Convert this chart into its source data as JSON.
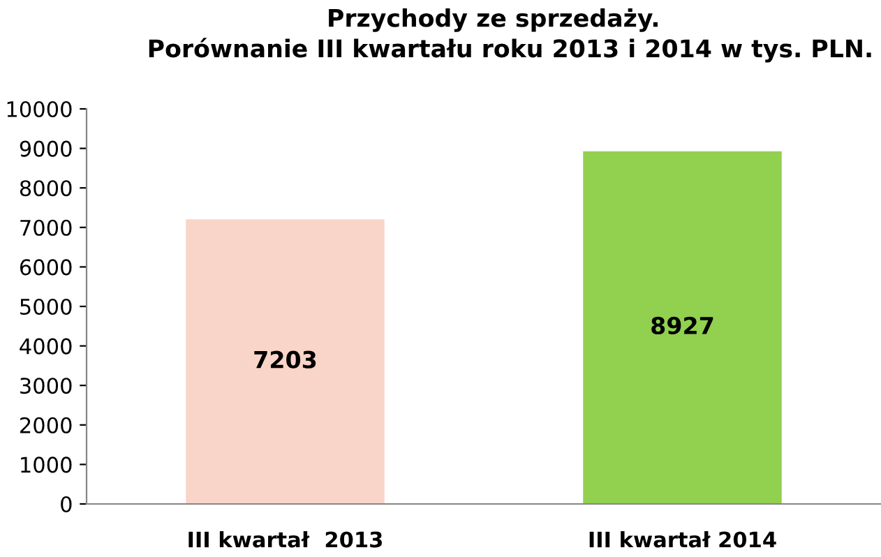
{
  "chart_data": {
    "type": "bar",
    "title": "Przychody ze sprzedaży.\n    Porównanie III kwartału roku 2013 i 2014 w tys. PLN.",
    "categories": [
      "III kwartał  2013",
      "III kwartał 2014"
    ],
    "values": [
      7203,
      8927
    ],
    "colors": [
      "#f8d5c8",
      "#92d050"
    ],
    "ylim": [
      0,
      10000
    ],
    "yticks": [
      0,
      1000,
      2000,
      3000,
      4000,
      5000,
      6000,
      7000,
      8000,
      9000,
      10000
    ],
    "data_labels": true,
    "grid": false,
    "legend": false
  }
}
